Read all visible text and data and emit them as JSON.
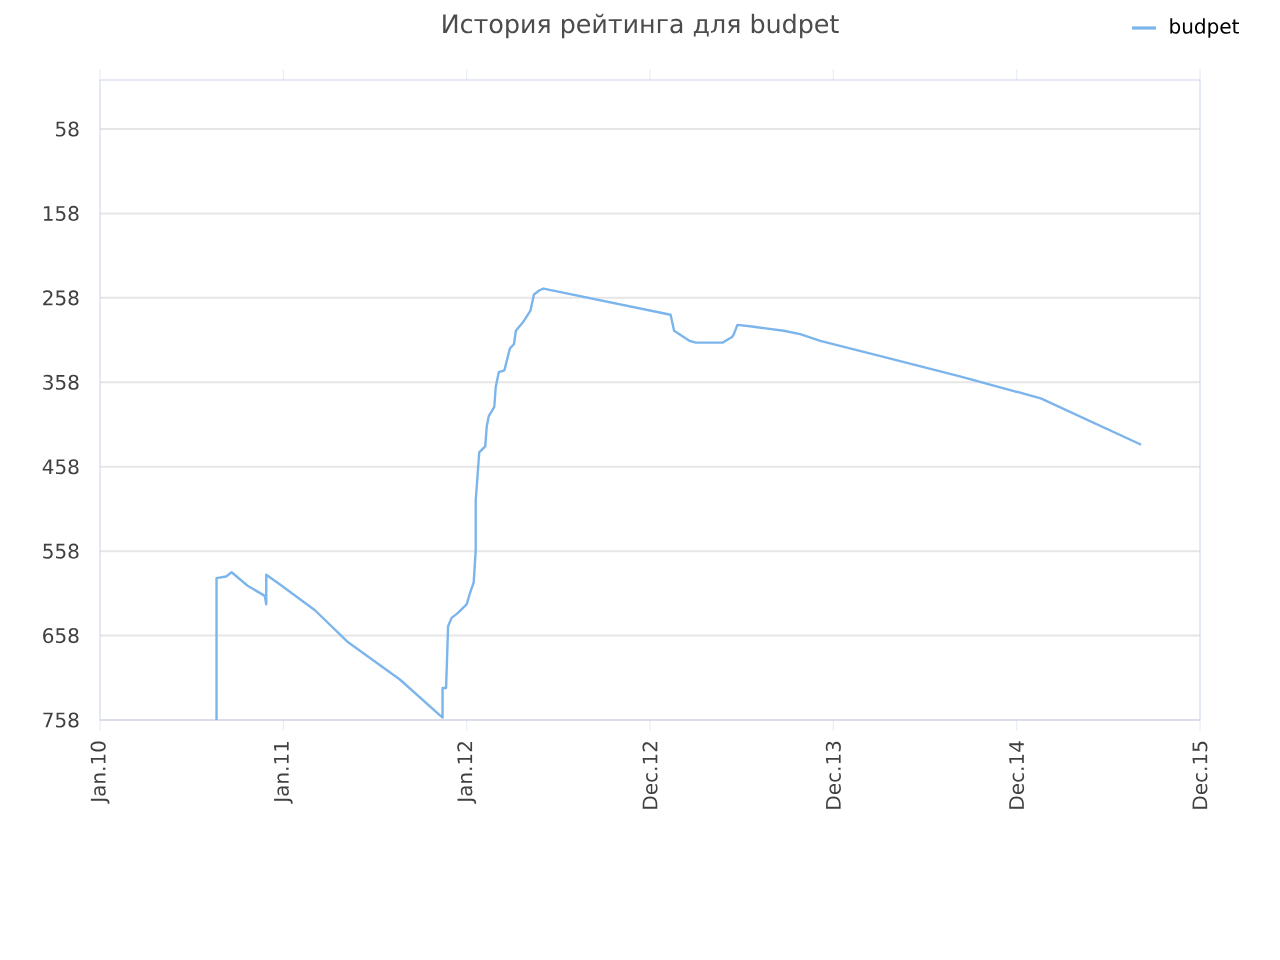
{
  "chart_data": {
    "type": "step",
    "title": "История рейтинга для budpet",
    "x": [
      "2010-08-21",
      "2010-08-21",
      "2010-09-09",
      "2010-09-20",
      "2010-10-22",
      "2010-11-25",
      "2010-11-28",
      "2010-11-28",
      "2010-12-24",
      "2011-03-05",
      "2011-05-10",
      "2011-08-21",
      "2011-11-10",
      "2011-11-14",
      "2011-11-14",
      "2011-11-21",
      "2011-11-25",
      "2011-12-02",
      "2011-12-13",
      "2012-01-01",
      "2012-01-08",
      "2012-01-15",
      "2012-01-19",
      "2012-01-19",
      "2012-01-22",
      "2012-01-26",
      "2012-02-07",
      "2012-02-10",
      "2012-02-14",
      "2012-02-25",
      "2012-02-28",
      "2012-03-05",
      "2012-03-16",
      "2012-03-27",
      "2012-04-04",
      "2012-04-08",
      "2012-04-15",
      "2012-04-22",
      "2012-05-07",
      "2012-05-14",
      "2012-05-25",
      "2012-06-02",
      "2013-02-10",
      "2013-02-17",
      "2013-03-20",
      "2013-04-01",
      "2013-05-25",
      "2013-06-13",
      "2013-06-16",
      "2013-06-23",
      "2013-07-22",
      "2013-09-23",
      "2013-10-26",
      "2013-12-05",
      "2014-04-04",
      "2014-09-09",
      "2015-02-17",
      "2015-09-05"
    ],
    "series": [
      {
        "name": "budpet",
        "color": "#7cb5ec",
        "values": [
          758,
          590,
          588,
          583,
          599,
          611,
          621,
          586,
          597,
          628,
          666,
          710,
          753,
          755,
          720,
          720,
          647,
          637,
          632,
          621,
          607,
          595,
          557,
          498,
          474,
          441,
          434,
          410,
          398,
          387,
          363,
          346,
          344,
          318,
          313,
          297,
          292,
          287,
          273,
          254,
          249,
          247,
          278,
          297,
          309,
          311,
          311,
          304,
          301,
          290,
          292,
          297,
          301,
          309,
          327,
          351,
          377,
          432
        ]
      }
    ],
    "xlim": [
      "2010-01-01",
      "2015-12-31"
    ],
    "xticks": [
      {
        "value": "2010-01-01",
        "label": "Jan.10"
      },
      {
        "value": "2011-01-01",
        "label": "Jan.11"
      },
      {
        "value": "2012-01-01",
        "label": "Jan.12"
      },
      {
        "value": "2012-12-31",
        "label": "Dec.12"
      },
      {
        "value": "2013-12-31",
        "label": "Dec.13"
      },
      {
        "value": "2014-12-31",
        "label": "Dec.14"
      },
      {
        "value": "2015-12-31",
        "label": "Dec.15"
      }
    ],
    "ylim": [
      758,
      0
    ],
    "yticks": [
      58,
      158,
      258,
      358,
      458,
      558,
      658,
      758
    ],
    "grid": "y",
    "legend": "top right",
    "marker": "none",
    "line_style": "solid"
  }
}
